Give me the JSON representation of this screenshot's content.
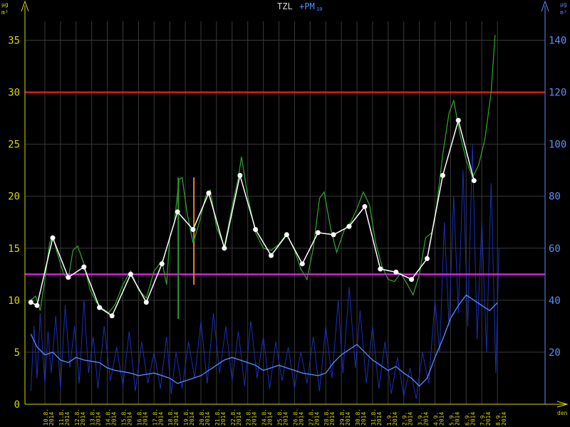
{
  "chart_data": {
    "type": "line",
    "title": {
      "main": "TZL",
      "secondary_prefix": "+PM",
      "secondary_sub": "10"
    },
    "y_left": {
      "unit_top": "µg",
      "unit_bottom": "m³",
      "range": [
        0,
        37.5
      ],
      "ticks": [
        0,
        5,
        10,
        15,
        20,
        25,
        30,
        35
      ],
      "color": "#d8d800"
    },
    "y_right": {
      "unit_top": "µg",
      "unit_bottom": "m³",
      "range": [
        0,
        150
      ],
      "ticks": [
        20,
        40,
        60,
        80,
        100,
        120,
        140
      ],
      "color": "#5a8cff"
    },
    "x_unit": "den",
    "x_ticks": [
      {
        "day": "10.8.",
        "year": "2014"
      },
      {
        "day": "11.8.",
        "year": "2014"
      },
      {
        "day": "12.8.",
        "year": "2014"
      },
      {
        "day": "13.8.",
        "year": "2014"
      },
      {
        "day": "14.8.",
        "year": "2014"
      },
      {
        "day": "15.8.",
        "year": "2014"
      },
      {
        "day": "16.8.",
        "year": "2014"
      },
      {
        "day": "17.8.",
        "year": "2014"
      },
      {
        "day": "18.8.",
        "year": "2014"
      },
      {
        "day": "19.8.",
        "year": "2014"
      },
      {
        "day": "20.8.",
        "year": "2014"
      },
      {
        "day": "21.8.",
        "year": "2014"
      },
      {
        "day": "22.8.",
        "year": "2014"
      },
      {
        "day": "23.8.",
        "year": "2014"
      },
      {
        "day": "24.8.",
        "year": "2014"
      },
      {
        "day": "25.8.",
        "year": "2014"
      },
      {
        "day": "26.8.",
        "year": "2014"
      },
      {
        "day": "27.8.",
        "year": "2014"
      },
      {
        "day": "28.8.",
        "year": "2014"
      },
      {
        "day": "29.8.",
        "year": "2014"
      },
      {
        "day": "30.8.",
        "year": "2014"
      },
      {
        "day": "31.8.",
        "year": "2014"
      },
      {
        "day": "1.9.",
        "year": "2014"
      },
      {
        "day": "2.9.",
        "year": "2014"
      },
      {
        "day": "3.9.",
        "year": "2014"
      },
      {
        "day": "4.9.",
        "year": "2014"
      },
      {
        "day": "5.9.",
        "year": "2014"
      },
      {
        "day": "6.9.",
        "year": "2014"
      },
      {
        "day": "7.9.",
        "year": "2014"
      },
      {
        "day": "8.9.",
        "year": "2014"
      }
    ],
    "x_range_days": [
      -1.0,
      29.7
    ],
    "grid": true,
    "limit_lines": [
      {
        "value": 30,
        "color": "#ff2020"
      },
      {
        "value": 12.5,
        "color": "#ff20ff"
      }
    ],
    "tzl_daily": {
      "color": "#ffffff",
      "points": [
        [
          -0.9,
          9.8
        ],
        [
          -0.5,
          9.5
        ],
        [
          0.5,
          16
        ],
        [
          1.5,
          12.2
        ],
        [
          2.5,
          13.2
        ],
        [
          3.5,
          9.3
        ],
        [
          4.3,
          8.5
        ],
        [
          5.5,
          12.5
        ],
        [
          6.5,
          9.8
        ],
        [
          7.5,
          13.5
        ],
        [
          8.5,
          18.5
        ],
        [
          9.5,
          16.8
        ],
        [
          10.5,
          20.3
        ],
        [
          11.5,
          15
        ],
        [
          12.5,
          22
        ],
        [
          13.5,
          16.8
        ],
        [
          14.5,
          14.3
        ],
        [
          15.5,
          16.3
        ],
        [
          16.5,
          13.5
        ],
        [
          17.5,
          16.5
        ],
        [
          18.5,
          16.3
        ],
        [
          19.5,
          17.1
        ],
        [
          20.5,
          19
        ],
        [
          21.5,
          13
        ],
        [
          22.5,
          12.7
        ],
        [
          23.5,
          12
        ],
        [
          24.5,
          14
        ],
        [
          25.5,
          22
        ],
        [
          26.5,
          27.3
        ],
        [
          27.5,
          21.5
        ]
      ]
    },
    "tzl_hourly_trace": {
      "color": "#2e9e2e",
      "points": [
        [
          -0.9,
          10
        ],
        [
          -0.6,
          10.4
        ],
        [
          -0.3,
          9
        ],
        [
          0,
          12
        ],
        [
          0.3,
          15.5
        ],
        [
          0.5,
          16.2
        ],
        [
          0.8,
          14.5
        ],
        [
          1.2,
          12.5
        ],
        [
          1.5,
          12
        ],
        [
          1.8,
          14.8
        ],
        [
          2.1,
          15.2
        ],
        [
          2.5,
          13.5
        ],
        [
          2.9,
          11
        ],
        [
          3.3,
          9.8
        ],
        [
          3.7,
          9.2
        ],
        [
          4.1,
          8.8
        ],
        [
          4.5,
          9.6
        ],
        [
          5,
          11.5
        ],
        [
          5.5,
          12.8
        ],
        [
          6,
          11
        ],
        [
          6.5,
          10.2
        ],
        [
          7,
          12.8
        ],
        [
          7.5,
          13.8
        ],
        [
          7.8,
          11.5
        ],
        [
          8,
          16
        ],
        [
          8.3,
          17.5
        ],
        [
          8.6,
          21.6
        ],
        [
          8.8,
          21.8
        ],
        [
          9.1,
          18.5
        ],
        [
          9.5,
          15.5
        ],
        [
          9.9,
          17.5
        ],
        [
          10.3,
          20
        ],
        [
          10.6,
          20.6
        ],
        [
          11,
          17
        ],
        [
          11.5,
          15.2
        ],
        [
          12,
          19
        ],
        [
          12.4,
          21.8
        ],
        [
          12.6,
          23.8
        ],
        [
          13,
          20
        ],
        [
          13.5,
          16.5
        ],
        [
          14,
          15
        ],
        [
          14.5,
          14.8
        ],
        [
          15,
          15.4
        ],
        [
          15.5,
          16.4
        ],
        [
          16,
          14.8
        ],
        [
          16.4,
          13
        ],
        [
          16.8,
          12
        ],
        [
          17.2,
          15
        ],
        [
          17.6,
          19.8
        ],
        [
          17.9,
          20.4
        ],
        [
          18.3,
          17
        ],
        [
          18.7,
          14.6
        ],
        [
          19.2,
          16.8
        ],
        [
          19.6,
          17.5
        ],
        [
          20,
          18.8
        ],
        [
          20.4,
          20.4
        ],
        [
          20.8,
          19.2
        ],
        [
          21.2,
          15.5
        ],
        [
          21.6,
          13.3
        ],
        [
          22,
          12
        ],
        [
          22.4,
          11.8
        ],
        [
          22.8,
          12.6
        ],
        [
          23.2,
          11.6
        ],
        [
          23.6,
          10.5
        ],
        [
          24,
          12.5
        ],
        [
          24.4,
          16
        ],
        [
          24.8,
          16.5
        ],
        [
          25.1,
          19
        ],
        [
          25.5,
          24
        ],
        [
          25.9,
          28
        ],
        [
          26.2,
          29.2
        ],
        [
          26.6,
          26
        ],
        [
          27,
          23.5
        ],
        [
          27.4,
          21.8
        ],
        [
          27.8,
          23
        ],
        [
          28.2,
          25.5
        ],
        [
          28.6,
          30
        ],
        [
          28.85,
          35.5
        ]
      ]
    },
    "tzl_dropouts": [
      {
        "day": 8.55,
        "from": 8.2,
        "to": 21.8,
        "color": "#2e9e2e"
      },
      {
        "day": 9.55,
        "from": 11.5,
        "to": 21.8,
        "color": "#e08a1e"
      }
    ],
    "pm10_smooth": {
      "color": "#5a8cff",
      "axis": "right",
      "points": [
        [
          -0.9,
          27
        ],
        [
          -0.5,
          22
        ],
        [
          0,
          19
        ],
        [
          0.5,
          20
        ],
        [
          1,
          17
        ],
        [
          1.5,
          16
        ],
        [
          2,
          18
        ],
        [
          2.5,
          17
        ],
        [
          3,
          16.5
        ],
        [
          3.5,
          16
        ],
        [
          4,
          14
        ],
        [
          4.5,
          13
        ],
        [
          5,
          12.5
        ],
        [
          5.5,
          12
        ],
        [
          6,
          11
        ],
        [
          6.5,
          11.5
        ],
        [
          7,
          12
        ],
        [
          7.5,
          11
        ],
        [
          8,
          10
        ],
        [
          8.5,
          8
        ],
        [
          9,
          9
        ],
        [
          9.5,
          10
        ],
        [
          10,
          11
        ],
        [
          10.5,
          13
        ],
        [
          11,
          15
        ],
        [
          11.5,
          17
        ],
        [
          12,
          18
        ],
        [
          12.5,
          17
        ],
        [
          13,
          16
        ],
        [
          13.5,
          15
        ],
        [
          14,
          13
        ],
        [
          14.5,
          14
        ],
        [
          15,
          15
        ],
        [
          15.5,
          14
        ],
        [
          16,
          13
        ],
        [
          16.5,
          12
        ],
        [
          17,
          11.5
        ],
        [
          17.5,
          11
        ],
        [
          18,
          12
        ],
        [
          18.5,
          16
        ],
        [
          19,
          19
        ],
        [
          19.5,
          21
        ],
        [
          20,
          23
        ],
        [
          20.5,
          20
        ],
        [
          21,
          17
        ],
        [
          21.5,
          15
        ],
        [
          22,
          13
        ],
        [
          22.5,
          14.5
        ],
        [
          23,
          12
        ],
        [
          23.5,
          10
        ],
        [
          24,
          7
        ],
        [
          24.5,
          10
        ],
        [
          25,
          18
        ],
        [
          25.5,
          25
        ],
        [
          26,
          33
        ],
        [
          26.5,
          38
        ],
        [
          27,
          42
        ],
        [
          27.5,
          40
        ],
        [
          28,
          38
        ],
        [
          28.5,
          36
        ],
        [
          29,
          39
        ]
      ]
    },
    "pm10_hourly_trace": {
      "color": "#1a2fb8",
      "axis": "right",
      "points": [
        [
          -0.9,
          5
        ],
        [
          -0.7,
          30
        ],
        [
          -0.5,
          10
        ],
        [
          -0.3,
          35
        ],
        [
          0,
          8
        ],
        [
          0.2,
          28
        ],
        [
          0.4,
          12
        ],
        [
          0.7,
          34
        ],
        [
          1,
          6
        ],
        [
          1.3,
          38
        ],
        [
          1.6,
          14
        ],
        [
          1.9,
          30
        ],
        [
          2.2,
          8
        ],
        [
          2.5,
          40
        ],
        [
          2.8,
          12
        ],
        [
          3.1,
          26
        ],
        [
          3.4,
          6
        ],
        [
          3.8,
          30
        ],
        [
          4.2,
          9
        ],
        [
          4.6,
          22
        ],
        [
          5,
          7
        ],
        [
          5.4,
          28
        ],
        [
          5.8,
          5
        ],
        [
          6.2,
          24
        ],
        [
          6.6,
          8
        ],
        [
          7,
          20
        ],
        [
          7.4,
          6
        ],
        [
          7.8,
          26
        ],
        [
          8.1,
          4
        ],
        [
          8.4,
          20
        ],
        [
          8.8,
          6
        ],
        [
          9.2,
          24
        ],
        [
          9.6,
          10
        ],
        [
          10,
          32
        ],
        [
          10.4,
          8
        ],
        [
          10.8,
          35
        ],
        [
          11.2,
          12
        ],
        [
          11.6,
          30
        ],
        [
          12,
          9
        ],
        [
          12.4,
          28
        ],
        [
          12.8,
          7
        ],
        [
          13.2,
          32
        ],
        [
          13.6,
          10
        ],
        [
          14,
          26
        ],
        [
          14.4,
          6
        ],
        [
          14.8,
          24
        ],
        [
          15.2,
          9
        ],
        [
          15.6,
          22
        ],
        [
          16,
          6
        ],
        [
          16.4,
          20
        ],
        [
          16.8,
          8
        ],
        [
          17.2,
          26
        ],
        [
          17.6,
          5
        ],
        [
          18,
          30
        ],
        [
          18.4,
          10
        ],
        [
          18.8,
          40
        ],
        [
          19.1,
          12
        ],
        [
          19.5,
          45
        ],
        [
          19.9,
          14
        ],
        [
          20.2,
          36
        ],
        [
          20.6,
          8
        ],
        [
          21,
          30
        ],
        [
          21.4,
          6
        ],
        [
          21.8,
          24
        ],
        [
          22.2,
          4
        ],
        [
          22.6,
          18
        ],
        [
          23,
          3
        ],
        [
          23.4,
          14
        ],
        [
          23.8,
          2
        ],
        [
          24.2,
          20
        ],
        [
          24.6,
          8
        ],
        [
          25,
          40
        ],
        [
          25.3,
          20
        ],
        [
          25.6,
          70
        ],
        [
          25.9,
          30
        ],
        [
          26.2,
          80
        ],
        [
          26.5,
          35
        ],
        [
          26.8,
          90
        ],
        [
          27.1,
          30
        ],
        [
          27.4,
          100
        ],
        [
          27.7,
          25
        ],
        [
          28,
          70
        ],
        [
          28.3,
          20
        ],
        [
          28.6,
          85
        ],
        [
          28.9,
          12
        ],
        [
          29.1,
          60
        ]
      ]
    }
  }
}
